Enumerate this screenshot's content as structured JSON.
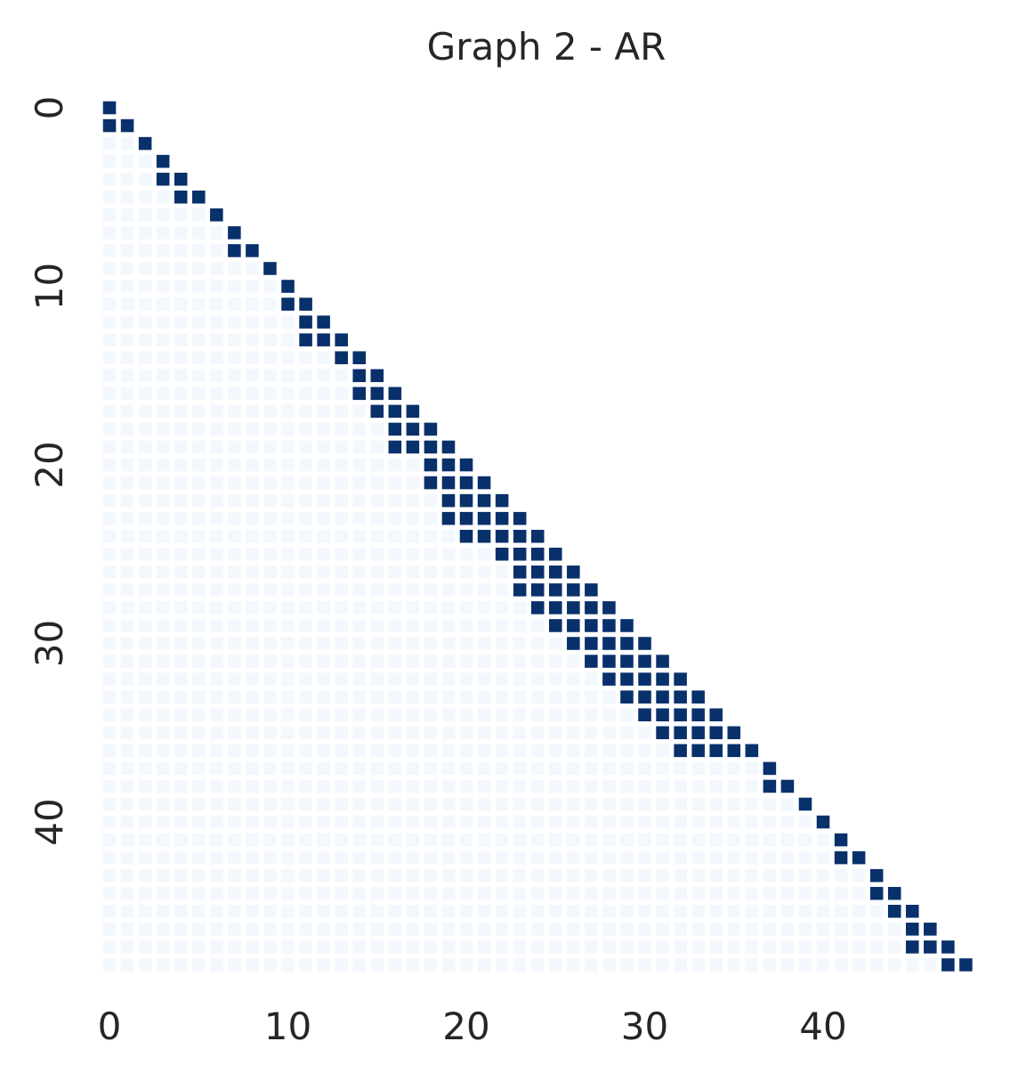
{
  "chart_data": {
    "type": "heatmap",
    "title": "Graph 2 - AR",
    "xlabel": "",
    "ylabel": "",
    "size": 49,
    "x_ticks": [
      0,
      10,
      20,
      30,
      40
    ],
    "y_ticks": [
      0,
      10,
      20,
      30,
      40
    ],
    "grid": false,
    "legend": "none",
    "colors": {
      "on": "#08306b",
      "off_lower": "#f3f8fe",
      "background": "#ffffff",
      "text": "#262626"
    },
    "rows": [
      [
        0
      ],
      [
        0,
        1
      ],
      [
        2
      ],
      [
        3
      ],
      [
        3,
        4
      ],
      [
        4,
        5
      ],
      [
        6
      ],
      [
        7
      ],
      [
        7,
        8
      ],
      [
        9
      ],
      [
        10
      ],
      [
        10,
        11
      ],
      [
        11,
        12
      ],
      [
        11,
        12,
        13
      ],
      [
        13,
        14
      ],
      [
        14,
        15
      ],
      [
        14,
        15,
        16
      ],
      [
        15,
        16,
        17
      ],
      [
        16,
        17,
        18
      ],
      [
        16,
        17,
        18,
        19
      ],
      [
        18,
        19,
        20
      ],
      [
        18,
        19,
        20,
        21
      ],
      [
        19,
        20,
        21,
        22
      ],
      [
        19,
        20,
        21,
        22,
        23
      ],
      [
        20,
        21,
        22,
        23,
        24
      ],
      [
        22,
        23,
        24,
        25
      ],
      [
        23,
        24,
        25,
        26
      ],
      [
        23,
        24,
        25,
        26,
        27
      ],
      [
        24,
        25,
        26,
        27,
        28
      ],
      [
        25,
        26,
        27,
        28,
        29
      ],
      [
        26,
        27,
        28,
        29,
        30
      ],
      [
        27,
        28,
        29,
        30,
        31
      ],
      [
        28,
        29,
        30,
        31,
        32
      ],
      [
        29,
        30,
        31,
        32,
        33
      ],
      [
        30,
        31,
        32,
        33,
        34
      ],
      [
        31,
        32,
        33,
        34,
        35
      ],
      [
        32,
        33,
        34,
        35,
        36
      ],
      [
        37
      ],
      [
        37,
        38
      ],
      [
        39
      ],
      [
        40
      ],
      [
        41
      ],
      [
        41,
        42
      ],
      [
        43
      ],
      [
        43,
        44
      ],
      [
        44,
        45
      ],
      [
        45,
        46
      ],
      [
        45,
        46,
        47
      ],
      [
        47,
        48
      ]
    ]
  }
}
